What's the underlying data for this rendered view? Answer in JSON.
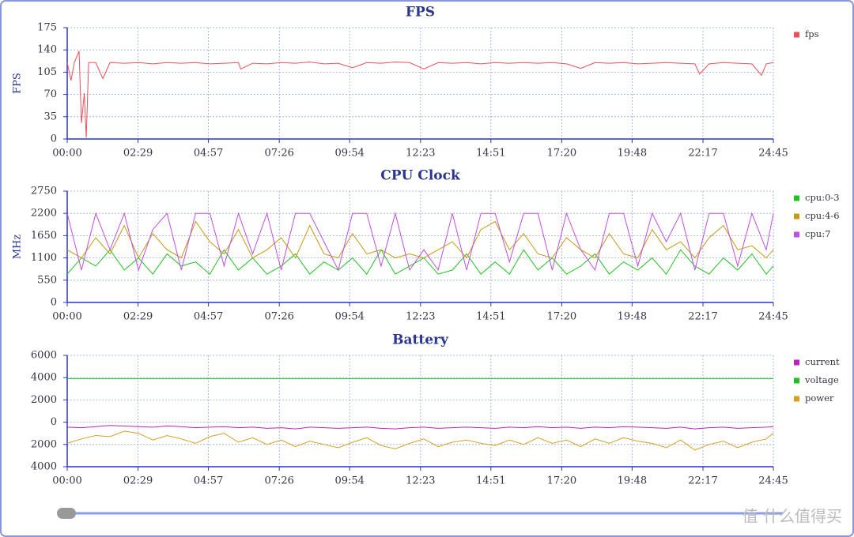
{
  "chart_data": [
    {
      "type": "line",
      "title": "FPS",
      "y_label": "FPS",
      "grid": true,
      "legend": "right",
      "x": [
        0,
        8,
        15,
        25,
        30,
        36,
        40,
        45,
        50,
        60,
        75,
        90,
        120,
        150,
        180,
        210,
        240,
        270,
        300,
        330,
        360,
        365,
        390,
        420,
        450,
        480,
        510,
        540,
        570,
        600,
        630,
        660,
        690,
        720,
        750,
        780,
        810,
        840,
        870,
        900,
        930,
        960,
        990,
        1020,
        1050,
        1080,
        1110,
        1140,
        1170,
        1200,
        1230,
        1260,
        1290,
        1320,
        1330,
        1350,
        1380,
        1410,
        1440,
        1460,
        1470,
        1485
      ],
      "series": [
        {
          "name": "fps",
          "color": "#e8505b",
          "values": [
            120,
            92,
            120,
            138,
            25,
            72,
            2,
            120,
            120,
            120,
            95,
            120,
            119,
            120,
            118,
            120,
            119,
            120,
            118,
            119,
            120,
            110,
            119,
            118,
            120,
            119,
            121,
            118,
            119,
            112,
            120,
            119,
            121,
            120,
            110,
            120,
            119,
            120,
            118,
            120,
            119,
            120,
            119,
            120,
            118,
            111,
            120,
            119,
            120,
            118,
            119,
            120,
            119,
            118,
            102,
            118,
            120,
            119,
            118,
            100,
            118,
            120
          ]
        }
      ],
      "xlim": [
        0,
        1485
      ],
      "ylim": [
        0,
        175
      ],
      "yticks": [
        0,
        35,
        70,
        105,
        140,
        175
      ],
      "xticks": [
        {
          "value": 0,
          "label": "00:00"
        },
        {
          "value": 149,
          "label": "02:29"
        },
        {
          "value": 297,
          "label": "04:57"
        },
        {
          "value": 446,
          "label": "07:26"
        },
        {
          "value": 594,
          "label": "09:54"
        },
        {
          "value": 743,
          "label": "12:23"
        },
        {
          "value": 891,
          "label": "14:51"
        },
        {
          "value": 1040,
          "label": "17:20"
        },
        {
          "value": 1188,
          "label": "19:48"
        },
        {
          "value": 1337,
          "label": "22:17"
        },
        {
          "value": 1485,
          "label": "24:45"
        }
      ]
    },
    {
      "type": "line",
      "title": "CPU Clock",
      "y_label": "MHz",
      "grid": true,
      "legend": "right",
      "x": [
        0,
        30,
        60,
        90,
        120,
        150,
        180,
        210,
        240,
        270,
        300,
        330,
        360,
        390,
        420,
        450,
        480,
        510,
        540,
        570,
        600,
        630,
        660,
        690,
        720,
        750,
        780,
        810,
        840,
        870,
        900,
        930,
        960,
        990,
        1020,
        1050,
        1080,
        1110,
        1140,
        1170,
        1200,
        1230,
        1260,
        1290,
        1320,
        1350,
        1380,
        1410,
        1440,
        1470,
        1485
      ],
      "series": [
        {
          "name": "cpu:0-3",
          "color": "#1fc41f",
          "values": [
            700,
            1100,
            900,
            1300,
            800,
            1100,
            700,
            1200,
            900,
            1000,
            700,
            1300,
            800,
            1100,
            700,
            900,
            1200,
            700,
            1000,
            800,
            1100,
            700,
            1300,
            700,
            900,
            1100,
            700,
            800,
            1200,
            700,
            1000,
            700,
            1300,
            800,
            1100,
            700,
            900,
            1200,
            700,
            1000,
            800,
            1100,
            700,
            1300,
            900,
            700,
            1100,
            800,
            1200,
            700,
            900
          ]
        },
        {
          "name": "cpu:4-6",
          "color": "#c89a10",
          "values": [
            1300,
            1100,
            1600,
            1200,
            1900,
            1100,
            1700,
            1300,
            1100,
            2000,
            1500,
            1200,
            1800,
            1100,
            1300,
            1600,
            1100,
            1900,
            1200,
            1100,
            1700,
            1200,
            1300,
            1100,
            1200,
            1100,
            1300,
            1500,
            1100,
            1800,
            2000,
            1300,
            1700,
            1200,
            1100,
            1600,
            1300,
            1100,
            1700,
            1200,
            1100,
            1800,
            1300,
            1500,
            1100,
            1600,
            1900,
            1300,
            1400,
            1100,
            1300
          ]
        },
        {
          "name": "cpu:7",
          "color": "#c050e0",
          "values": [
            2200,
            800,
            2200,
            1300,
            2200,
            800,
            1800,
            2200,
            800,
            2200,
            2200,
            900,
            2200,
            1200,
            2200,
            800,
            2200,
            2200,
            1500,
            800,
            2200,
            2200,
            900,
            2200,
            800,
            1300,
            800,
            2200,
            800,
            2200,
            2200,
            1000,
            2200,
            2200,
            800,
            2200,
            1300,
            800,
            2200,
            2200,
            900,
            2200,
            1500,
            2200,
            800,
            2200,
            2200,
            900,
            2200,
            1300,
            2200
          ]
        }
      ],
      "xlim": [
        0,
        1485
      ],
      "ylim": [
        0,
        2750
      ],
      "yticks": [
        0,
        550,
        1100,
        1650,
        2200,
        2750
      ],
      "xticks": [
        {
          "value": 0,
          "label": "00:00"
        },
        {
          "value": 149,
          "label": "02:29"
        },
        {
          "value": 297,
          "label": "04:57"
        },
        {
          "value": 446,
          "label": "07:26"
        },
        {
          "value": 594,
          "label": "09:54"
        },
        {
          "value": 743,
          "label": "12:23"
        },
        {
          "value": 891,
          "label": "14:51"
        },
        {
          "value": 1040,
          "label": "17:20"
        },
        {
          "value": 1188,
          "label": "19:48"
        },
        {
          "value": 1337,
          "label": "22:17"
        },
        {
          "value": 1485,
          "label": "24:45"
        }
      ]
    },
    {
      "type": "line",
      "title": "Battery",
      "grid": true,
      "legend": "right",
      "x": [
        0,
        30,
        60,
        90,
        120,
        150,
        180,
        210,
        240,
        270,
        300,
        330,
        360,
        390,
        420,
        450,
        480,
        510,
        540,
        570,
        600,
        630,
        660,
        690,
        720,
        750,
        780,
        810,
        840,
        870,
        900,
        930,
        960,
        990,
        1020,
        1050,
        1080,
        1110,
        1140,
        1170,
        1200,
        1230,
        1260,
        1290,
        1320,
        1350,
        1380,
        1410,
        1440,
        1470,
        1485
      ],
      "series": [
        {
          "name": "current",
          "color": "#c020c0",
          "values": [
            -450,
            -500,
            -400,
            -300,
            -350,
            -400,
            -450,
            -350,
            -400,
            -500,
            -450,
            -400,
            -500,
            -450,
            -550,
            -500,
            -600,
            -450,
            -500,
            -550,
            -500,
            -450,
            -550,
            -600,
            -500,
            -450,
            -550,
            -500,
            -450,
            -500,
            -550,
            -450,
            -500,
            -400,
            -500,
            -450,
            -550,
            -450,
            -500,
            -400,
            -450,
            -500,
            -550,
            -450,
            -600,
            -500,
            -450,
            -550,
            -500,
            -450,
            -400
          ]
        },
        {
          "name": "voltage",
          "color": "#20c020",
          "values": [
            3900,
            3900,
            3900,
            3900,
            3900,
            3900,
            3900,
            3900,
            3900,
            3900,
            3900,
            3900,
            3900,
            3900,
            3900,
            3900,
            3900,
            3900,
            3900,
            3900,
            3900,
            3900,
            3900,
            3900,
            3900,
            3900,
            3900,
            3900,
            3900,
            3900,
            3900,
            3900,
            3900,
            3900,
            3900,
            3900,
            3900,
            3900,
            3900,
            3900,
            3900,
            3900,
            3900,
            3900,
            3900,
            3900,
            3900,
            3900,
            3900,
            3900,
            3900
          ]
        },
        {
          "name": "power",
          "color": "#d8a020",
          "values": [
            -1900,
            -1500,
            -1200,
            -1300,
            -800,
            -1000,
            -1600,
            -1200,
            -1500,
            -1900,
            -1300,
            -1000,
            -1800,
            -1400,
            -2000,
            -1600,
            -2200,
            -1700,
            -2000,
            -2300,
            -1800,
            -1400,
            -2100,
            -2400,
            -1900,
            -1500,
            -2200,
            -1800,
            -1600,
            -1900,
            -2100,
            -1600,
            -2000,
            -1400,
            -1900,
            -1600,
            -2200,
            -1500,
            -1900,
            -1400,
            -1700,
            -1900,
            -2300,
            -1600,
            -2500,
            -2000,
            -1700,
            -2300,
            -1800,
            -1500,
            -1000
          ]
        }
      ],
      "xlim": [
        0,
        1485
      ],
      "ylim": [
        -4000,
        6000
      ],
      "yticks": [
        {
          "value": -4000,
          "label": "4000"
        },
        {
          "value": -2000,
          "label": "2000"
        },
        0,
        2000,
        4000,
        6000
      ],
      "xticks": [
        {
          "value": 0,
          "label": "00:00"
        },
        {
          "value": 149,
          "label": "02:29"
        },
        {
          "value": 297,
          "label": "04:57"
        },
        {
          "value": 446,
          "label": "07:26"
        },
        {
          "value": 594,
          "label": "09:54"
        },
        {
          "value": 743,
          "label": "12:23"
        },
        {
          "value": 891,
          "label": "14:51"
        },
        {
          "value": 1040,
          "label": "17:20"
        },
        {
          "value": 1188,
          "label": "19:48"
        },
        {
          "value": 1337,
          "label": "22:17"
        },
        {
          "value": 1485,
          "label": "24:45"
        }
      ]
    }
  ],
  "watermark": "值 什么值得买"
}
